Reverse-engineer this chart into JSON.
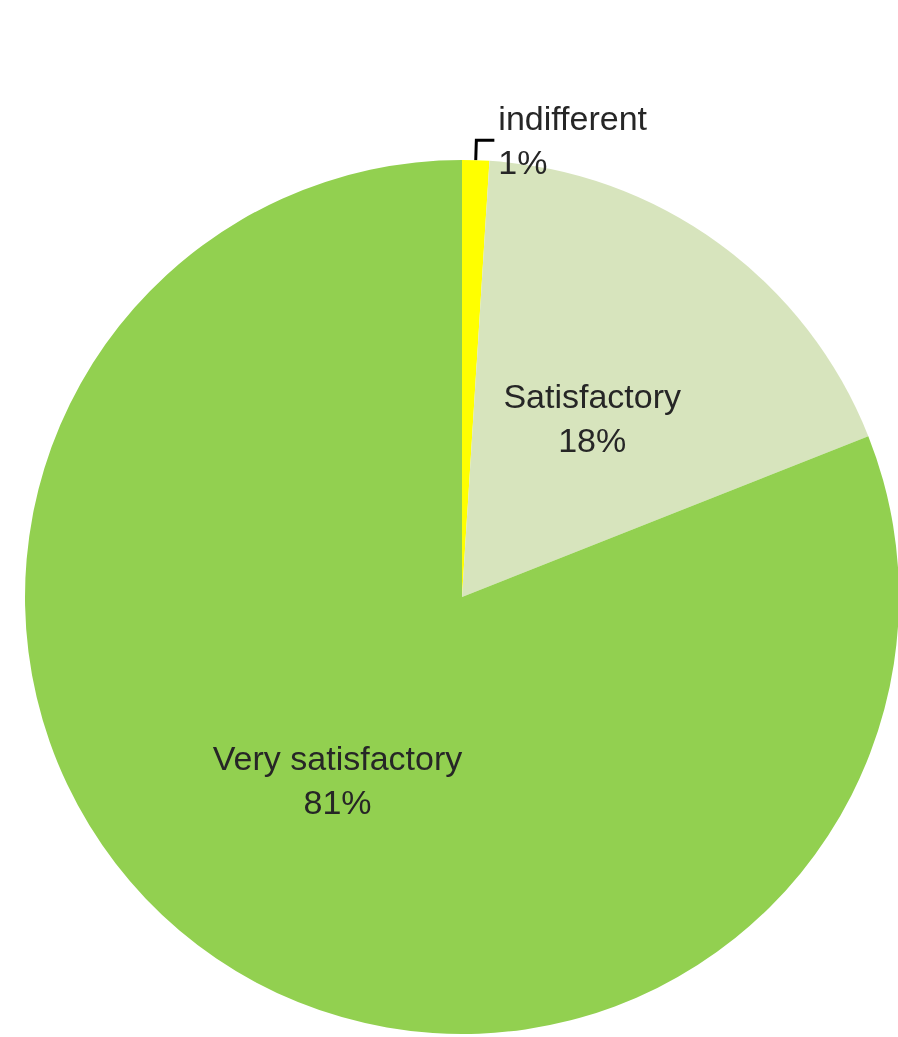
{
  "chart_data": {
    "type": "pie",
    "categories": [
      "indifferent",
      "Satisfactory",
      "Very satisfactory"
    ],
    "values": [
      1,
      18,
      81
    ],
    "colors": [
      "#ffff00",
      "#d7e4bd",
      "#92d050"
    ],
    "value_labels": [
      "1%",
      "18%",
      "81%"
    ],
    "legend": false
  }
}
